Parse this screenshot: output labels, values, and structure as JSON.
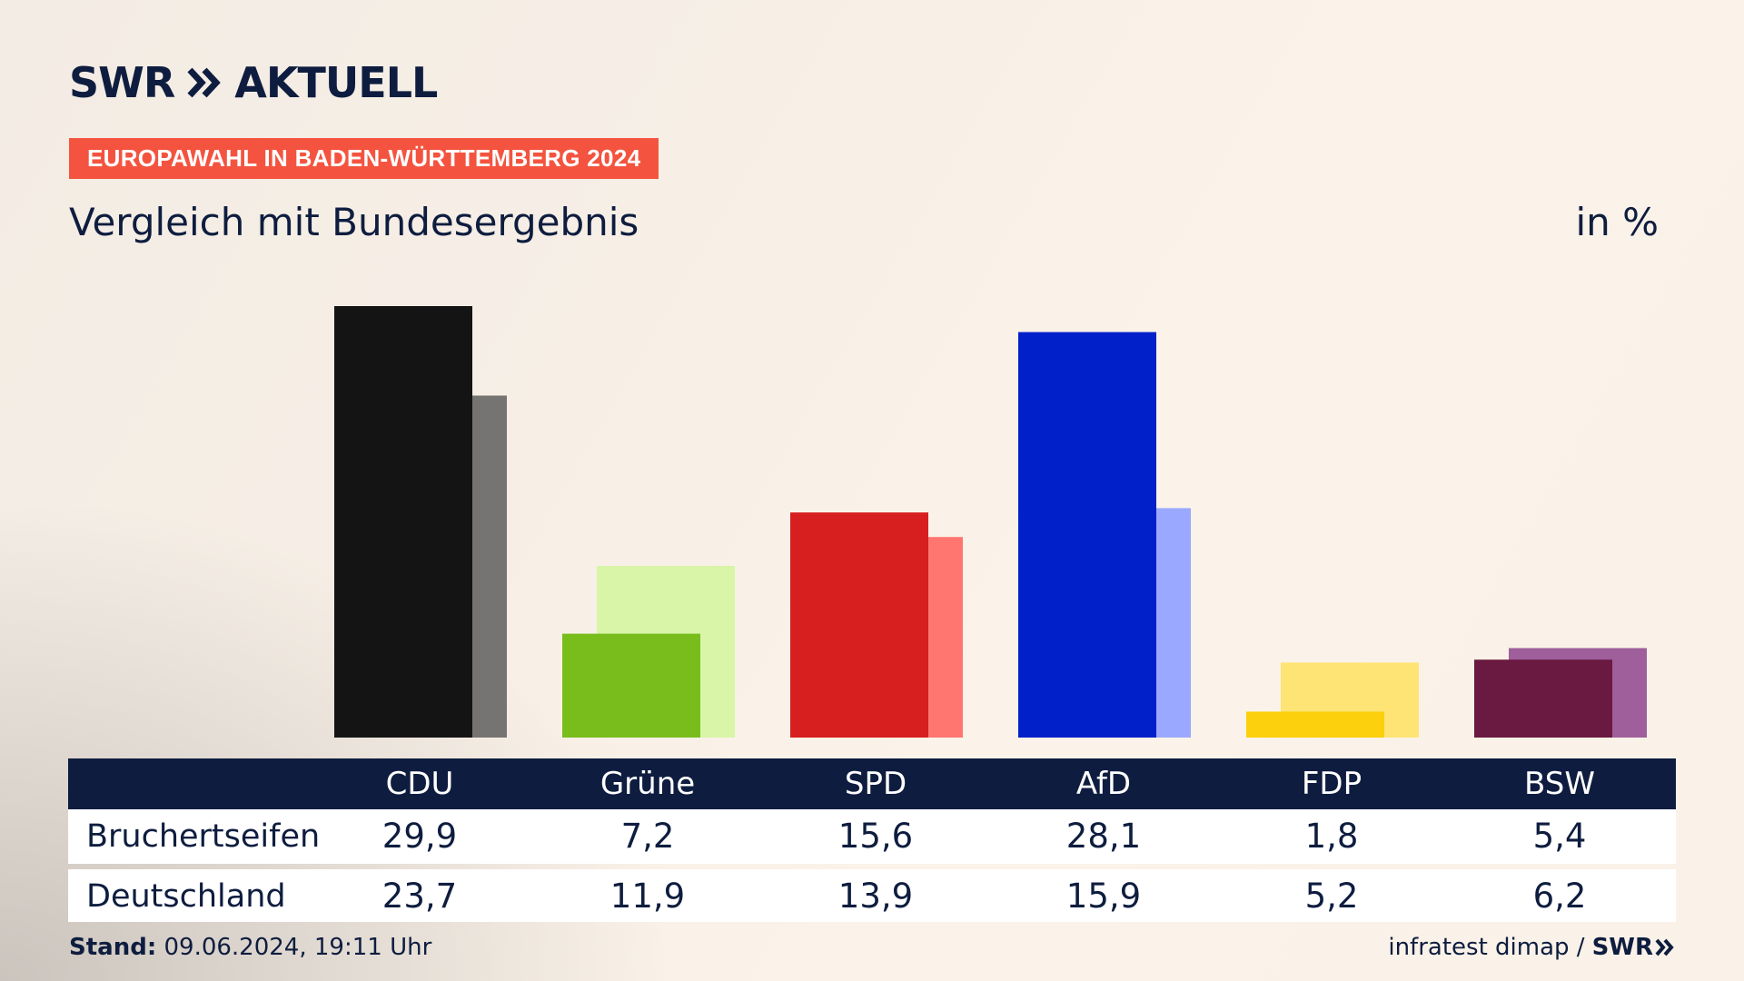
{
  "header": {
    "brand_main": "SWR",
    "brand_sub": "AKTUELL",
    "badge": "EUROPAWAHL IN BADEN-WÜRTTEMBERG 2024",
    "title": "Vergleich mit Bundesergebnis",
    "unit": "in %"
  },
  "colors": {
    "navy": "#0e1d3f",
    "badge": "#f4543f"
  },
  "chart_data": {
    "type": "bar",
    "categories": [
      "CDU",
      "Grüne",
      "SPD",
      "AfD",
      "FDP",
      "BSW"
    ],
    "series": [
      {
        "name": "Bruchertseifen",
        "values": [
          29.9,
          7.2,
          15.6,
          28.1,
          1.8,
          5.4
        ],
        "colors": [
          "#141414",
          "#79bd1d",
          "#d71f1f",
          "#0220c9",
          "#fcd00d",
          "#6a1940"
        ]
      },
      {
        "name": "Deutschland",
        "values": [
          23.7,
          11.9,
          13.9,
          15.9,
          5.2,
          6.2
        ],
        "colors": [
          "#767473",
          "#d8f5a8",
          "#ff7670",
          "#9aa9ff",
          "#fde474",
          "#9e5f9a"
        ]
      }
    ],
    "ylim": [
      0,
      30
    ]
  },
  "table": {
    "rows": [
      {
        "label": "Bruchertseifen",
        "values": [
          "29,9",
          "7,2",
          "15,6",
          "28,1",
          "1,8",
          "5,4"
        ]
      },
      {
        "label": "Deutschland",
        "values": [
          "23,7",
          "11,9",
          "13,9",
          "15,9",
          "5,2",
          "6,2"
        ]
      }
    ]
  },
  "footer": {
    "stand_label": "Stand:",
    "stand_value": "09.06.2024, 19:11 Uhr",
    "source": "infratest dimap /",
    "source_brand": "SWR"
  }
}
